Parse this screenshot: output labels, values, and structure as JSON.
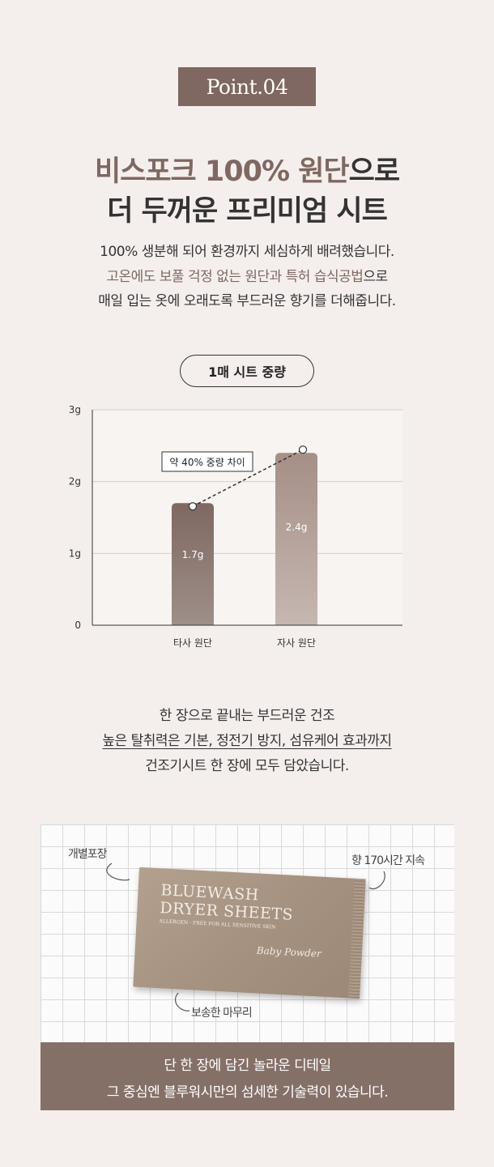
{
  "badge": "Point.04",
  "headline": {
    "line1_hl": "비스포크 100% 원단",
    "line1_rest": "으로",
    "line2": "더 두꺼운 프리미엄 시트"
  },
  "intro": {
    "line1": "100% 생분해 되어 환경까지 세심하게 배려했습니다.",
    "line2_hl": "고온에도 보풀 걱정 없는 원단과 특허 습식공법",
    "line2_rest": "으로",
    "line3": "매일 입는 옷에 오래도록 부드러운 향기를 더해줍니다."
  },
  "chart_section_label": "1매 시트 중량",
  "chart_data": {
    "type": "bar",
    "categories": [
      "타사 원단",
      "자사 원단"
    ],
    "values": [
      1.7,
      2.4
    ],
    "value_labels": [
      "1.7g",
      "2.4g"
    ],
    "ytick_labels": [
      "0",
      "1g",
      "2g",
      "3g"
    ],
    "ylim": [
      0,
      3
    ],
    "yticks": [
      0,
      1,
      2,
      3
    ],
    "grid": true,
    "annotation": "약 40% 중량 차이",
    "colors": {
      "bar1_top": "#7f6861",
      "bar1_bottom": "#9e8f89",
      "bar2_top": "#a58f87",
      "bar2_bottom": "#c6b7b1"
    }
  },
  "detail": {
    "line1": "한 장으로 끝내는 부드러운 건조",
    "line2": "높은 탈취력은 기본, 정전기 방지, 섬유케어 효과까지",
    "line3": "건조기시트 한 장에 모두 담았습니다."
  },
  "photo": {
    "brand_line1": "BLUEWASH",
    "brand_line2": "DRYER SHEETS",
    "brand_small": "ALLERGEN - FREE FOR ALL SENSITIVE SKIN",
    "scent": "Baby Powder",
    "note_left": "개별포장",
    "note_right": "향 170시간 지속",
    "note_bottom": "보송한 마무리"
  },
  "caption": {
    "line1": "단 한 장에 담긴 놀라운 디테일",
    "line2": "그 중심엔 블루워시만의 섬세한 기술력이 있습니다."
  },
  "colors": {
    "accent": "#7f6861",
    "background": "#f4efed",
    "caption_bg": "#857068"
  }
}
